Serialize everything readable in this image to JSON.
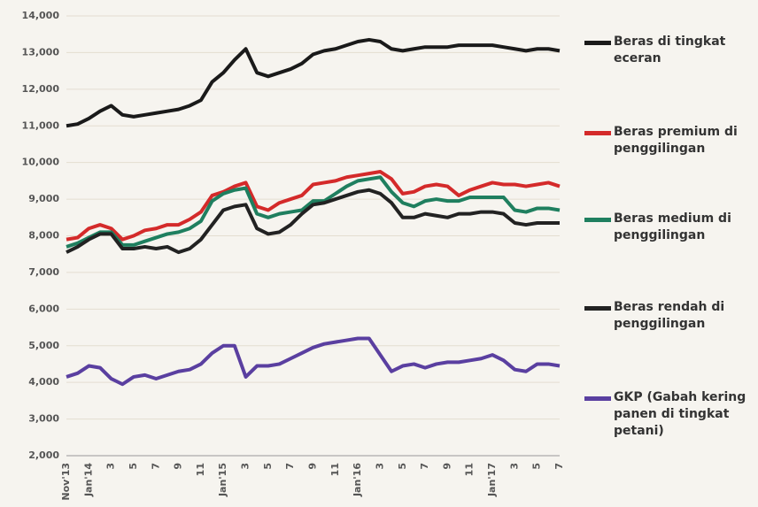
{
  "chart_data": {
    "type": "line",
    "categories": [
      "Nov'13",
      null,
      "Jan'14",
      null,
      "3",
      null,
      "5",
      null,
      "7",
      null,
      "9",
      null,
      "11",
      null,
      "Jan'15",
      null,
      "3",
      null,
      "5",
      null,
      "7",
      null,
      "9",
      null,
      "11",
      null,
      "Jan'16",
      null,
      "3",
      null,
      "5",
      null,
      "7",
      null,
      "9",
      null,
      "11",
      null,
      "Jan'17",
      null,
      "3",
      null,
      "5",
      null,
      "7"
    ],
    "series": [
      {
        "name": "Beras di tingkat eceran",
        "color": "#1a1a1a",
        "values": [
          11000,
          11050,
          11200,
          11400,
          11550,
          11300,
          11250,
          11300,
          11350,
          11400,
          11450,
          11550,
          11700,
          12200,
          12450,
          12800,
          13100,
          12450,
          12350,
          12450,
          12550,
          12700,
          12950,
          13050,
          13100,
          13200,
          13300,
          13350,
          13300,
          13100,
          13050,
          13100,
          13150,
          13150,
          13150,
          13200,
          13200,
          13200,
          13200,
          13150,
          13100,
          13050,
          13100,
          13100,
          13050
        ]
      },
      {
        "name": "Beras premium di penggilingan",
        "color": "#d42a2a",
        "values": [
          7900,
          7950,
          8200,
          8300,
          8200,
          7900,
          8000,
          8150,
          8200,
          8300,
          8300,
          8450,
          8650,
          9100,
          9200,
          9350,
          9450,
          8800,
          8700,
          8900,
          9000,
          9100,
          9400,
          9450,
          9500,
          9600,
          9650,
          9700,
          9750,
          9550,
          9150,
          9200,
          9350,
          9400,
          9350,
          9100,
          9250,
          9350,
          9450,
          9400,
          9400,
          9350,
          9400,
          9450,
          9350
        ]
      },
      {
        "name": "Beras medium di penggilingan",
        "color": "#1f7f5f",
        "values": [
          7700,
          7800,
          7950,
          8100,
          8100,
          7750,
          7750,
          7850,
          7950,
          8050,
          8100,
          8200,
          8400,
          8950,
          9150,
          9250,
          9300,
          8600,
          8500,
          8600,
          8650,
          8700,
          8950,
          8950,
          9150,
          9350,
          9500,
          9550,
          9600,
          9200,
          8900,
          8800,
          8950,
          9000,
          8950,
          8950,
          9050,
          9050,
          9050,
          9050,
          8700,
          8650,
          8750,
          8750,
          8700
        ]
      },
      {
        "name": "Beras rendah di penggilingan",
        "color": "#222222",
        "values": [
          7550,
          7700,
          7900,
          8050,
          8050,
          7650,
          7650,
          7700,
          7650,
          7700,
          7550,
          7650,
          7900,
          8300,
          8700,
          8800,
          8850,
          8200,
          8050,
          8100,
          8300,
          8600,
          8850,
          8900,
          9000,
          9100,
          9200,
          9250,
          9150,
          8900,
          8500,
          8500,
          8600,
          8550,
          8500,
          8600,
          8600,
          8650,
          8650,
          8600,
          8350,
          8300,
          8350,
          8350,
          8350
        ]
      },
      {
        "name": "GKP (Gabah kering panen di tingkat petani)",
        "color": "#5a3fa0",
        "values": [
          4150,
          4250,
          4450,
          4400,
          4100,
          3950,
          4150,
          4200,
          4100,
          4200,
          4300,
          4350,
          4500,
          4800,
          5000,
          5000,
          4150,
          4450,
          4450,
          4500,
          4650,
          4800,
          4950,
          5050,
          5100,
          5150,
          5200,
          5200,
          4750,
          4300,
          4450,
          4500,
          4400,
          4500,
          4550,
          4550,
          4600,
          4650,
          4750,
          4600,
          4350,
          4300,
          4500,
          4500,
          4450
        ]
      }
    ],
    "ylim": [
      2000,
      14000
    ],
    "yticks": [
      {
        "value": 2000,
        "label": "2,000"
      },
      {
        "value": 3000,
        "label": "3,000"
      },
      {
        "value": 4000,
        "label": "4,000"
      },
      {
        "value": 5000,
        "label": "5,000"
      },
      {
        "value": 6000,
        "label": "6,000"
      },
      {
        "value": 7000,
        "label": "7,000"
      },
      {
        "value": 8000,
        "label": "8,000"
      },
      {
        "value": 9000,
        "label": "9,000"
      },
      {
        "value": 10000,
        "label": "10,000"
      },
      {
        "value": 11000,
        "label": "11,000"
      },
      {
        "value": 12000,
        "label": "12,000"
      },
      {
        "value": 13000,
        "label": "13,000"
      },
      {
        "value": 14000,
        "label": "14,000"
      }
    ],
    "grid": true
  }
}
